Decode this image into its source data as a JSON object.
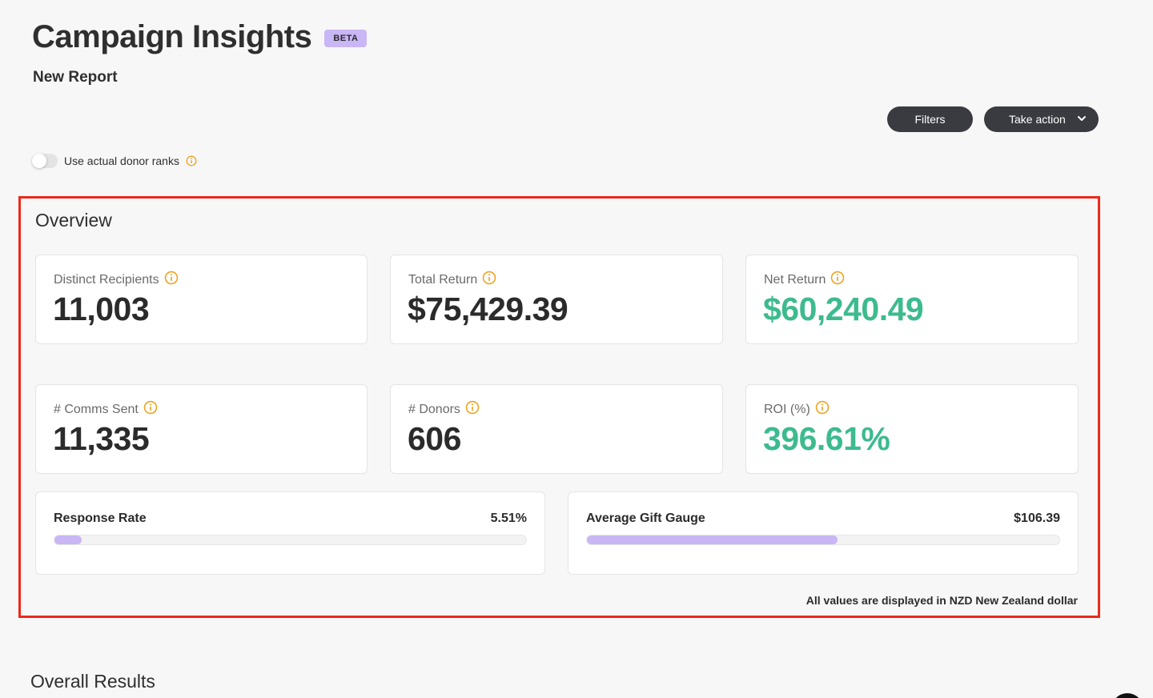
{
  "header": {
    "title": "Campaign Insights",
    "badge": "BETA",
    "subtitle": "New Report"
  },
  "toolbar": {
    "filters_label": "Filters",
    "action_label": "Take action",
    "action_icon": "chevron-down-icon"
  },
  "toggle": {
    "label": "Use actual donor ranks",
    "checked": false
  },
  "overview": {
    "title": "Overview",
    "cards": [
      {
        "label": "Distinct Recipients",
        "value": "11,003",
        "positive": false
      },
      {
        "label": "Total Return",
        "value": "$75,429.39",
        "positive": false
      },
      {
        "label": "Net Return",
        "value": "$60,240.49",
        "positive": true
      },
      {
        "label": "# Comms Sent",
        "value": "11,335",
        "positive": false
      },
      {
        "label": "# Donors",
        "value": "606",
        "positive": false
      },
      {
        "label": "ROI (%)",
        "value": "396.61%",
        "positive": true
      }
    ],
    "bars": [
      {
        "label": "Response Rate",
        "value": "5.51%",
        "fill_fraction": 0.058
      },
      {
        "label": "Average Gift Gauge",
        "value": "$106.39",
        "fill_fraction": 0.53
      }
    ],
    "currency_note": "All values are displayed in NZD New Zealand dollar"
  },
  "sections": {
    "overall_results": "Overall Results"
  },
  "colors": {
    "accent_purple": "#c9b6f5",
    "positive_green": "#3dbb8e",
    "info_orange": "#f0a11c",
    "button_dark": "#3a3b40",
    "highlight_red": "#ec2a1c"
  }
}
